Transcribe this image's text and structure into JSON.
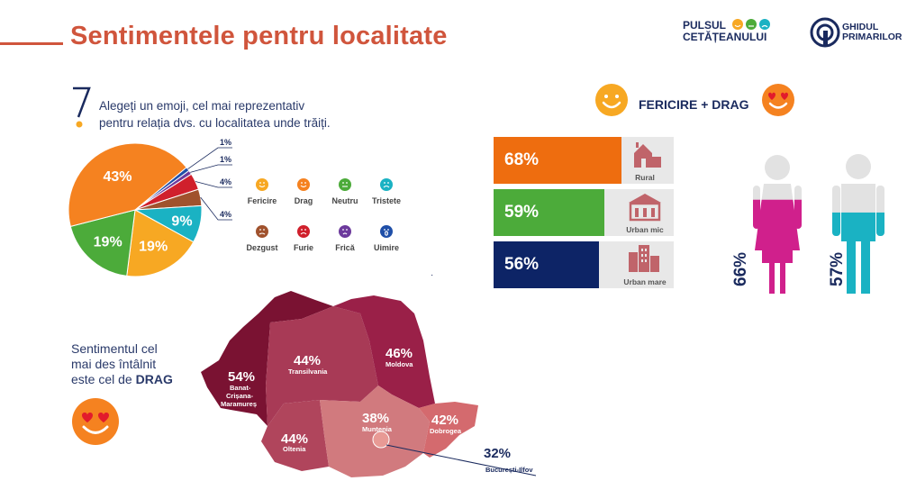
{
  "header": {
    "title": "Sentimentele pentru localitate",
    "logo1_line1": "PULSUL",
    "logo1_line2": "CETĂȚEANULUI",
    "logo2_line1": "GHIDUL",
    "logo2_line2": "PRIMARILOR"
  },
  "question": {
    "line1": "Alegeți un emoji, cel mai reprezentativ",
    "line2": "pentru relația dvs. cu localitatea unde trăiți."
  },
  "legend": [
    {
      "label": "Fericire",
      "color": "#f7a823",
      "icon": "happy-face-icon"
    },
    {
      "label": "Drag",
      "color": "#f58220",
      "icon": "heart-eyes-face-icon"
    },
    {
      "label": "Neutru",
      "color": "#4cab3a",
      "icon": "neutral-face-icon"
    },
    {
      "label": "Tristete",
      "color": "#1ab2c3",
      "icon": "sad-face-icon"
    },
    {
      "label": "Dezgust",
      "color": "#a0522d",
      "icon": "disgust-face-icon"
    },
    {
      "label": "Furie",
      "color": "#d0202c",
      "icon": "angry-face-icon"
    },
    {
      "label": "Frică",
      "color": "#6c3a9c",
      "icon": "fear-face-icon"
    },
    {
      "label": "Uimire",
      "color": "#1f4fa8",
      "icon": "surprise-face-icon"
    }
  ],
  "conclusion": {
    "line1": "Sentimentul cel",
    "line2": "mai des întâlnit",
    "line3_prefix": "este cel de ",
    "line3_bold": "DRAG"
  },
  "fericire_drag_label": "FERICIRE + DRAG",
  "chart_data": [
    {
      "type": "pie",
      "slices": [
        {
          "label": "Drag",
          "value": 43,
          "display": "43%",
          "color": "#f58220"
        },
        {
          "label": "Neutru",
          "value": 19,
          "display": "19%",
          "color": "#4cab3a"
        },
        {
          "label": "Fericire",
          "value": 19,
          "display": "19%",
          "color": "#f7a823"
        },
        {
          "label": "Tristete",
          "value": 9,
          "display": "9%",
          "color": "#1ab2c3"
        },
        {
          "label": "Dezgust",
          "value": 4,
          "display": "4%",
          "color": "#a0522d"
        },
        {
          "label": "Furie",
          "value": 4,
          "display": "4%",
          "color": "#d0202c"
        },
        {
          "label": "Uimire",
          "value": 1,
          "display": "1%",
          "color": "#1f4fa8"
        },
        {
          "label": "Frică",
          "value": 1,
          "display": "1%",
          "color": "#6c3a9c"
        }
      ]
    },
    {
      "type": "bar",
      "categories": [
        "Rural",
        "Urban mic",
        "Urban mare"
      ],
      "values": [
        68,
        59,
        56
      ],
      "labels": [
        "68%",
        "59%",
        "56%"
      ],
      "colors": [
        "#ee6d0f",
        "#4cab3a",
        "#0d2466"
      ],
      "xlim": [
        0,
        100
      ]
    },
    {
      "type": "bar",
      "categories": [
        "Femei",
        "Bărbați"
      ],
      "values": [
        66,
        57
      ],
      "labels": [
        "66%",
        "57%"
      ],
      "colors": [
        "#d0208c",
        "#1ab2c3"
      ],
      "ylim": [
        0,
        100
      ]
    },
    {
      "type": "heatmap",
      "regions": [
        {
          "name": "Banat-Crișana-Maramureș",
          "value": 54,
          "display": "54%"
        },
        {
          "name": "Transilvania",
          "value": 44,
          "display": "44%"
        },
        {
          "name": "Moldova",
          "value": 46,
          "display": "46%"
        },
        {
          "name": "Oltenia",
          "value": 44,
          "display": "44%"
        },
        {
          "name": "Muntenia",
          "value": 38,
          "display": "38%"
        },
        {
          "name": "Dobrogea",
          "value": 42,
          "display": "42%"
        },
        {
          "name": "București-Ilfov",
          "value": 32,
          "display": "32%"
        }
      ]
    }
  ]
}
